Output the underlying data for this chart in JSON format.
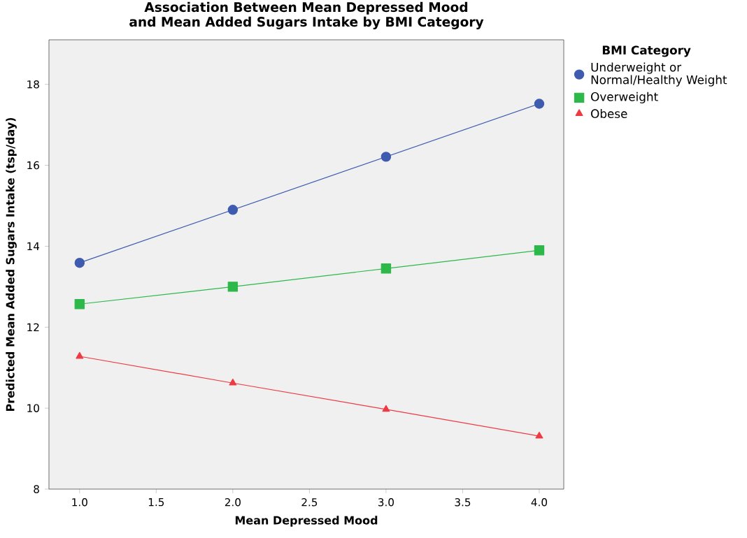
{
  "chart_data": {
    "type": "line",
    "title": "Association Between Mean Depressed Mood\nand Mean Added Sugars Intake by BMI Category",
    "xlabel": "Mean Depressed Mood",
    "ylabel": "Predicted Mean Added Sugars Intake (tsp/day)",
    "legend_title": "BMI Category",
    "x": [
      1,
      2,
      3,
      4
    ],
    "series": [
      {
        "name": "Underweight or Normal/Healthy Weight",
        "color": "#3f5bb0",
        "marker": "circle",
        "values": [
          13.59,
          14.9,
          16.21,
          17.52
        ]
      },
      {
        "name": "Overweight",
        "color": "#2db84a",
        "marker": "square",
        "values": [
          12.57,
          13.0,
          13.45,
          13.9
        ]
      },
      {
        "name": "Obese",
        "color": "#ee3a42",
        "marker": "triangle",
        "values": [
          11.28,
          10.62,
          9.97,
          9.31
        ]
      }
    ],
    "xlim": [
      0.8,
      4.16
    ],
    "ylim": [
      8,
      19.1
    ],
    "xticks": [
      {
        "value": 1,
        "label": "1.0"
      },
      {
        "value": 1.5,
        "label": "1.5"
      },
      {
        "value": 2,
        "label": "2.0"
      },
      {
        "value": 2.5,
        "label": "2.5"
      },
      {
        "value": 3,
        "label": "3.0"
      },
      {
        "value": 3.5,
        "label": "3.5"
      },
      {
        "value": 4,
        "label": "4.0"
      }
    ],
    "yticks": [
      8,
      10,
      12,
      14,
      16,
      18
    ],
    "grid": false,
    "legend": "top right",
    "line_style": "solid"
  }
}
